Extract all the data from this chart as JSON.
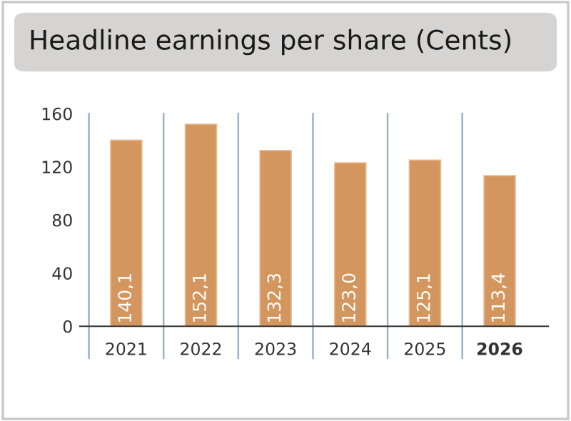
{
  "chart_data": {
    "type": "bar",
    "title": "Headline earnings per share (Cents)",
    "categories": [
      "2021",
      "2022",
      "2023",
      "2024",
      "2025",
      "2026"
    ],
    "values": [
      140.1,
      152.1,
      132.3,
      123.0,
      125.1,
      113.4
    ],
    "value_labels": [
      "140,1",
      "152,1",
      "132,3",
      "123,0",
      "125,1",
      "113,4"
    ],
    "color": "#d4965f",
    "ylim": [
      0,
      160
    ],
    "yticks": [
      0,
      40,
      80,
      120,
      160
    ],
    "grid": "x"
  }
}
